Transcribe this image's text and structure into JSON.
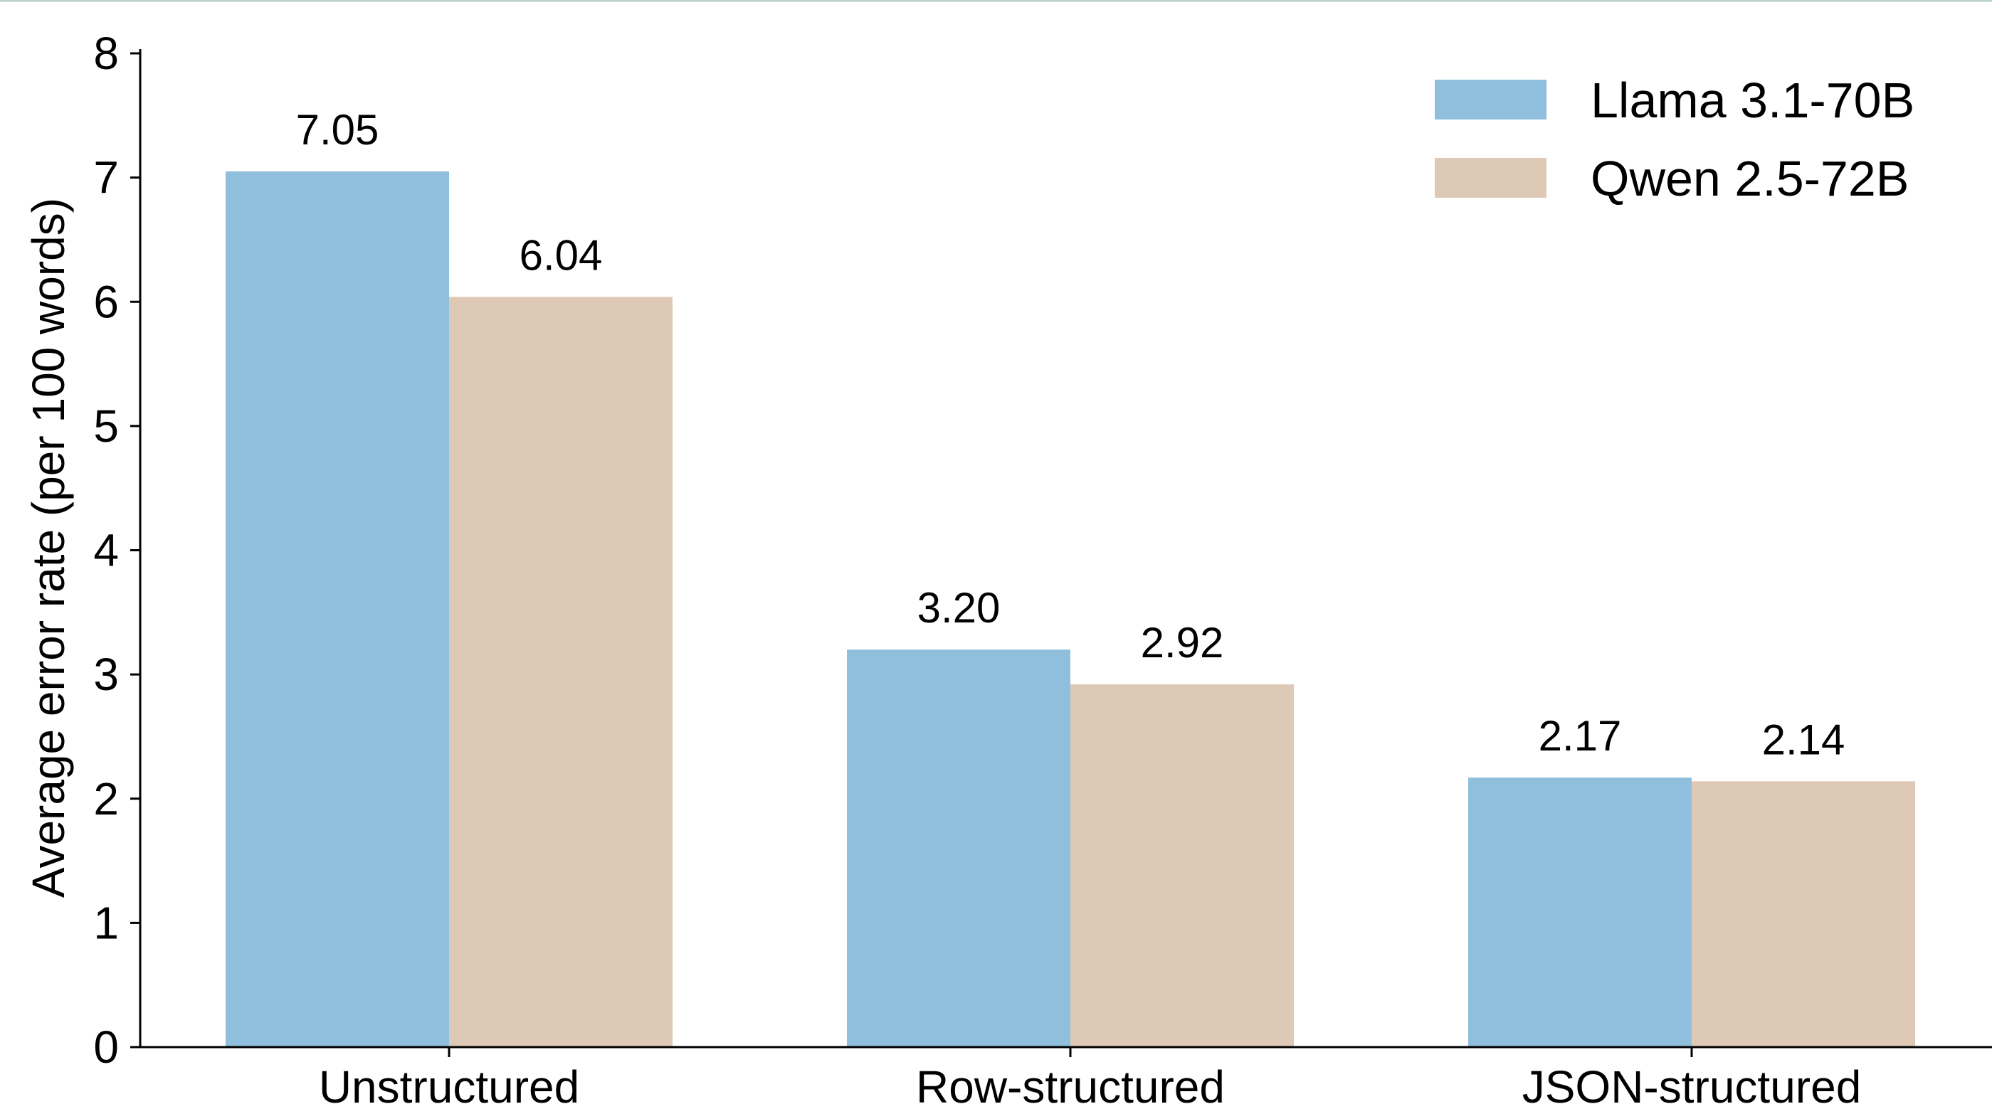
{
  "chart_data": {
    "type": "bar",
    "title": "",
    "xlabel": "",
    "ylabel": "Average error rate (per 100 words)",
    "categories": [
      "Unstructured",
      "Row-structured",
      "JSON-structured"
    ],
    "series": [
      {
        "name": "Llama 3.1-70B",
        "values": [
          7.05,
          3.2,
          2.17
        ],
        "value_labels": [
          "7.05",
          "3.20",
          "2.17"
        ],
        "color": "#90BFDD"
      },
      {
        "name": "Qwen 2.5-72B",
        "values": [
          6.04,
          2.92,
          2.14
        ],
        "value_labels": [
          "6.04",
          "2.92",
          "2.14"
        ],
        "color": "#DDC9B5"
      }
    ],
    "ylim": [
      0,
      8
    ],
    "yticks": [
      0,
      1,
      2,
      3,
      4,
      5,
      6,
      7,
      8
    ],
    "grid": false,
    "legend_position": "top-right"
  }
}
